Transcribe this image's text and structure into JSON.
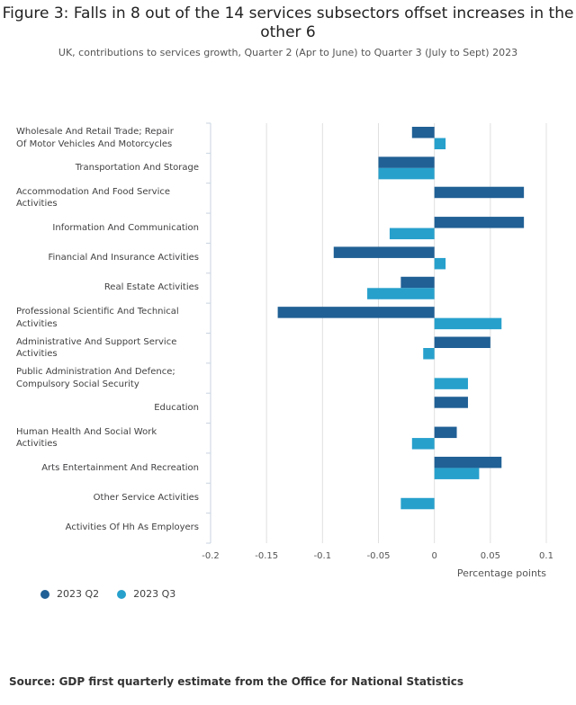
{
  "title": "Figure 3: Falls in 8 out of the 14 services subsectors offset increases in the other 6",
  "subtitle": "UK, contributions to services growth, Quarter 2 (Apr to June) to Quarter 3 (July to Sept) 2023",
  "source": "Source: GDP first quarterly estimate from the Office for National Statistics",
  "chart_data": {
    "type": "bar",
    "orientation": "horizontal",
    "categories": [
      "Wholesale And Retail Trade; Repair Of Motor Vehicles And Motorcycles",
      "Transportation And Storage",
      "Accommodation And Food Service Activities",
      "Information And Communication",
      "Financial And Insurance Activities",
      "Real Estate Activities",
      "Professional Scientific And Technical Activities",
      "Administrative And Support Service Activities",
      "Public Administration And Defence; Compulsory Social Security",
      "Education",
      "Human Health And Social Work Activities",
      "Arts Entertainment And Recreation",
      "Other Service Activities",
      "Activities Of Hh As Employers"
    ],
    "series": [
      {
        "name": "2023 Q2",
        "color": "#206095",
        "values": [
          -0.02,
          -0.05,
          0.08,
          0.08,
          -0.09,
          -0.03,
          -0.14,
          0.05,
          0.0,
          0.03,
          0.02,
          0.06,
          0.0,
          0.0
        ]
      },
      {
        "name": "2023 Q3",
        "color": "#27a0cc",
        "values": [
          0.01,
          -0.05,
          0.0,
          -0.04,
          0.01,
          -0.06,
          0.06,
          -0.01,
          0.03,
          0.0,
          -0.02,
          0.04,
          -0.03,
          0.0
        ]
      }
    ],
    "xlabel": "Percentage points",
    "xlim": [
      -0.2,
      0.1
    ],
    "xticks": [
      -0.2,
      -0.15,
      -0.1,
      -0.05,
      0,
      0.05,
      0.1
    ],
    "xtick_labels": [
      "-0.2",
      "-0.15",
      "-0.1",
      "-0.05",
      "0",
      "0.05",
      "0.1"
    ],
    "legend_position": "bottom-left"
  }
}
